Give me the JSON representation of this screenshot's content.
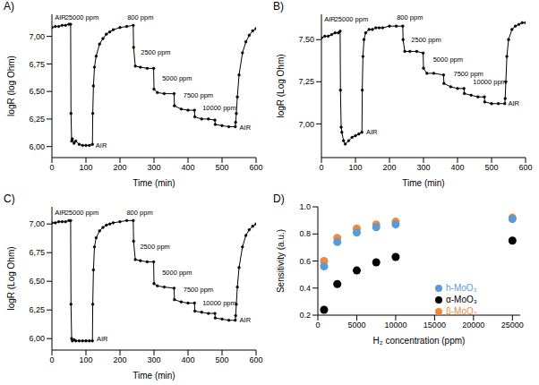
{
  "chart_data": [
    {
      "type": "line",
      "title": "A)",
      "x_label": "Time (min)",
      "y_label": "logR (log Ohm)",
      "x": [
        0,
        10,
        20,
        30,
        40,
        50,
        55,
        56,
        58,
        60,
        65,
        70,
        80,
        90,
        100,
        110,
        119,
        120,
        122,
        125,
        130,
        140,
        150,
        160,
        170,
        180,
        200,
        220,
        239,
        240,
        245,
        260,
        280,
        299,
        300,
        310,
        330,
        359,
        360,
        380,
        400,
        419,
        420,
        440,
        460,
        479,
        480,
        500,
        520,
        539,
        540,
        542,
        545,
        550,
        560,
        570,
        580,
        590,
        600
      ],
      "series": [
        {
          "color": "#000000",
          "marker": "circle",
          "line_style": "solid",
          "values": [
            7.08,
            7.09,
            7.09,
            7.1,
            7.1,
            7.11,
            7.11,
            6.3,
            6.05,
            6.07,
            6.03,
            6.05,
            6.02,
            6.01,
            6.01,
            6.01,
            6.02,
            6.3,
            6.55,
            6.72,
            6.82,
            6.93,
            6.98,
            7.02,
            7.04,
            7.06,
            7.08,
            7.09,
            7.1,
            6.9,
            6.73,
            6.72,
            6.71,
            6.71,
            6.52,
            6.49,
            6.48,
            6.48,
            6.37,
            6.34,
            6.33,
            6.33,
            6.27,
            6.25,
            6.25,
            6.24,
            6.2,
            6.19,
            6.18,
            6.18,
            6.22,
            6.3,
            6.45,
            6.65,
            6.85,
            6.95,
            7.01,
            7.05,
            7.07
          ]
        }
      ],
      "xlim": [
        0,
        600
      ],
      "xticks": [
        0,
        100,
        200,
        300,
        400,
        500,
        600
      ],
      "ylim": [
        5.9,
        7.2
      ],
      "yticks": [
        {
          "value": 6,
          "label": "6,00"
        },
        {
          "value": 6.25,
          "label": "6,25"
        },
        {
          "value": 6.5,
          "label": "6,50"
        },
        {
          "value": 6.75,
          "label": "6,75"
        },
        {
          "value": 7,
          "label": "7,00"
        }
      ],
      "grid": false,
      "annotations": [
        {
          "text": "AIR",
          "x": 25,
          "y": 7.17
        },
        {
          "text": "25000 ppm",
          "x": 88,
          "y": 7.17
        },
        {
          "text": "800 ppm",
          "x": 260,
          "y": 7.17
        },
        {
          "text": "2500 ppm",
          "x": 305,
          "y": 6.86
        },
        {
          "text": "5000 ppm",
          "x": 368,
          "y": 6.62
        },
        {
          "text": "7500 ppm",
          "x": 430,
          "y": 6.47
        },
        {
          "text": "10000 ppm",
          "x": 492,
          "y": 6.35
        },
        {
          "text": "AIR",
          "x": 145,
          "y": 6.01
        },
        {
          "text": "AIR",
          "x": 568,
          "y": 6.17
        }
      ]
    },
    {
      "type": "line",
      "title": "B)",
      "x_label": "Time (min)",
      "y_label": "logR (Log Ohm)",
      "x": [
        0,
        10,
        20,
        30,
        40,
        50,
        55,
        56,
        58,
        60,
        65,
        70,
        80,
        90,
        100,
        110,
        119,
        120,
        122,
        125,
        130,
        140,
        150,
        160,
        170,
        180,
        200,
        220,
        239,
        240,
        245,
        260,
        280,
        299,
        300,
        310,
        330,
        359,
        360,
        380,
        400,
        419,
        420,
        440,
        460,
        479,
        480,
        500,
        520,
        539,
        540,
        542,
        545,
        550,
        560,
        570,
        580,
        590,
        600
      ],
      "series": [
        {
          "color": "#000000",
          "marker": "circle",
          "line_style": "solid",
          "values": [
            7.51,
            7.52,
            7.52,
            7.53,
            7.54,
            7.54,
            7.55,
            7.2,
            6.98,
            6.95,
            6.9,
            6.88,
            6.9,
            6.92,
            6.93,
            6.94,
            6.95,
            7.2,
            7.4,
            7.5,
            7.54,
            7.56,
            7.56,
            7.57,
            7.57,
            7.57,
            7.58,
            7.58,
            7.58,
            7.5,
            7.43,
            7.43,
            7.43,
            7.42,
            7.33,
            7.3,
            7.3,
            7.29,
            7.24,
            7.22,
            7.21,
            7.21,
            7.18,
            7.17,
            7.16,
            7.16,
            7.13,
            7.12,
            7.12,
            7.12,
            7.15,
            7.25,
            7.4,
            7.5,
            7.56,
            7.58,
            7.59,
            7.6,
            7.6
          ]
        }
      ],
      "xlim": [
        0,
        600
      ],
      "xticks": [
        0,
        100,
        200,
        300,
        400,
        500,
        600
      ],
      "ylim": [
        6.8,
        7.65
      ],
      "yticks": [
        {
          "value": 7,
          "label": "7,00"
        },
        {
          "value": 7.25,
          "label": "7,25"
        },
        {
          "value": 7.5,
          "label": "7,50"
        }
      ],
      "grid": false,
      "annotations": [
        {
          "text": "AIR",
          "x": 25,
          "y": 7.62
        },
        {
          "text": "25000 ppm",
          "x": 88,
          "y": 7.62
        },
        {
          "text": "800 ppm",
          "x": 260,
          "y": 7.63
        },
        {
          "text": "2500 ppm",
          "x": 308,
          "y": 7.5
        },
        {
          "text": "5000 ppm",
          "x": 372,
          "y": 7.38
        },
        {
          "text": "7500 ppm",
          "x": 432,
          "y": 7.3
        },
        {
          "text": "10000 ppm",
          "x": 495,
          "y": 7.25
        },
        {
          "text": "AIR",
          "x": 148,
          "y": 6.95
        },
        {
          "text": "AIR",
          "x": 565,
          "y": 7.12
        }
      ]
    },
    {
      "type": "line",
      "title": "C)",
      "x_label": "Time (min)",
      "y_label": "logR (Log Ohm)",
      "x": [
        0,
        10,
        20,
        30,
        40,
        50,
        55,
        56,
        58,
        60,
        65,
        70,
        80,
        90,
        100,
        110,
        119,
        120,
        122,
        125,
        130,
        140,
        150,
        160,
        170,
        180,
        200,
        220,
        239,
        240,
        245,
        260,
        280,
        299,
        300,
        310,
        330,
        359,
        360,
        380,
        400,
        419,
        420,
        440,
        460,
        479,
        480,
        500,
        520,
        539,
        540,
        542,
        545,
        550,
        560,
        570,
        580,
        590,
        600
      ],
      "series": [
        {
          "color": "#000000",
          "marker": "circle",
          "line_style": "solid",
          "values": [
            7.01,
            7.01,
            7.02,
            7.02,
            7.02,
            7.03,
            7.03,
            6.3,
            6.0,
            5.98,
            5.99,
            5.98,
            5.98,
            5.98,
            5.98,
            5.98,
            5.98,
            6.3,
            6.6,
            6.8,
            6.88,
            6.94,
            6.97,
            6.99,
            7.0,
            7.01,
            7.02,
            7.03,
            7.03,
            6.85,
            6.69,
            6.68,
            6.67,
            6.67,
            6.48,
            6.46,
            6.45,
            6.44,
            6.34,
            6.32,
            6.31,
            6.31,
            6.24,
            6.23,
            6.22,
            6.22,
            6.18,
            6.17,
            6.16,
            6.16,
            6.2,
            6.3,
            6.45,
            6.62,
            6.8,
            6.9,
            6.95,
            6.98,
            7.0
          ]
        }
      ],
      "xlim": [
        0,
        600
      ],
      "xticks": [
        0,
        100,
        200,
        300,
        400,
        500,
        600
      ],
      "ylim": [
        5.9,
        7.15
      ],
      "yticks": [
        {
          "value": 6,
          "label": "6,00"
        },
        {
          "value": 6.25,
          "label": "6,25"
        },
        {
          "value": 6.5,
          "label": "6,50"
        },
        {
          "value": 6.75,
          "label": "6,75"
        },
        {
          "value": 7,
          "label": "7,00"
        }
      ],
      "grid": false,
      "annotations": [
        {
          "text": "AIR",
          "x": 25,
          "y": 7.1
        },
        {
          "text": "25000 ppm",
          "x": 88,
          "y": 7.1
        },
        {
          "text": "800 ppm",
          "x": 258,
          "y": 7.1
        },
        {
          "text": "2500 ppm",
          "x": 303,
          "y": 6.8
        },
        {
          "text": "5000 ppm",
          "x": 368,
          "y": 6.58
        },
        {
          "text": "7500 ppm",
          "x": 430,
          "y": 6.43
        },
        {
          "text": "10000 ppm",
          "x": 492,
          "y": 6.31
        },
        {
          "text": "AIR",
          "x": 148,
          "y": 6.0
        },
        {
          "text": "AIR",
          "x": 568,
          "y": 6.16
        }
      ]
    },
    {
      "type": "scatter",
      "title": "D)",
      "x_label": "H₂ concentration (ppm)",
      "y_label": "Sensitivity (a.u.)",
      "x": [
        800,
        2500,
        5000,
        7500,
        10000,
        25000
      ],
      "series": [
        {
          "name": "β-MoO₃",
          "color": "#f0883e",
          "marker": "circle",
          "values": [
            0.6,
            0.77,
            0.84,
            0.87,
            0.89,
            0.92
          ]
        },
        {
          "name": "h-MoO₃",
          "color": "#5b9bd5",
          "marker": "circle",
          "values": [
            0.56,
            0.74,
            0.81,
            0.85,
            0.87,
            0.91
          ]
        },
        {
          "name": "α-MoO₃",
          "color": "#000000",
          "marker": "circle",
          "values": [
            0.24,
            0.43,
            0.53,
            0.59,
            0.63,
            0.75
          ]
        }
      ],
      "xlim": [
        0,
        26000
      ],
      "xticks": [
        0,
        5000,
        10000,
        15000,
        20000,
        25000
      ],
      "ylim": [
        0.2,
        1.0
      ],
      "yticks": [
        0.2,
        0.4,
        0.6,
        0.8,
        {
          "value": 1,
          "label": "1.0"
        }
      ],
      "legend": "lower right",
      "grid": false
    }
  ]
}
